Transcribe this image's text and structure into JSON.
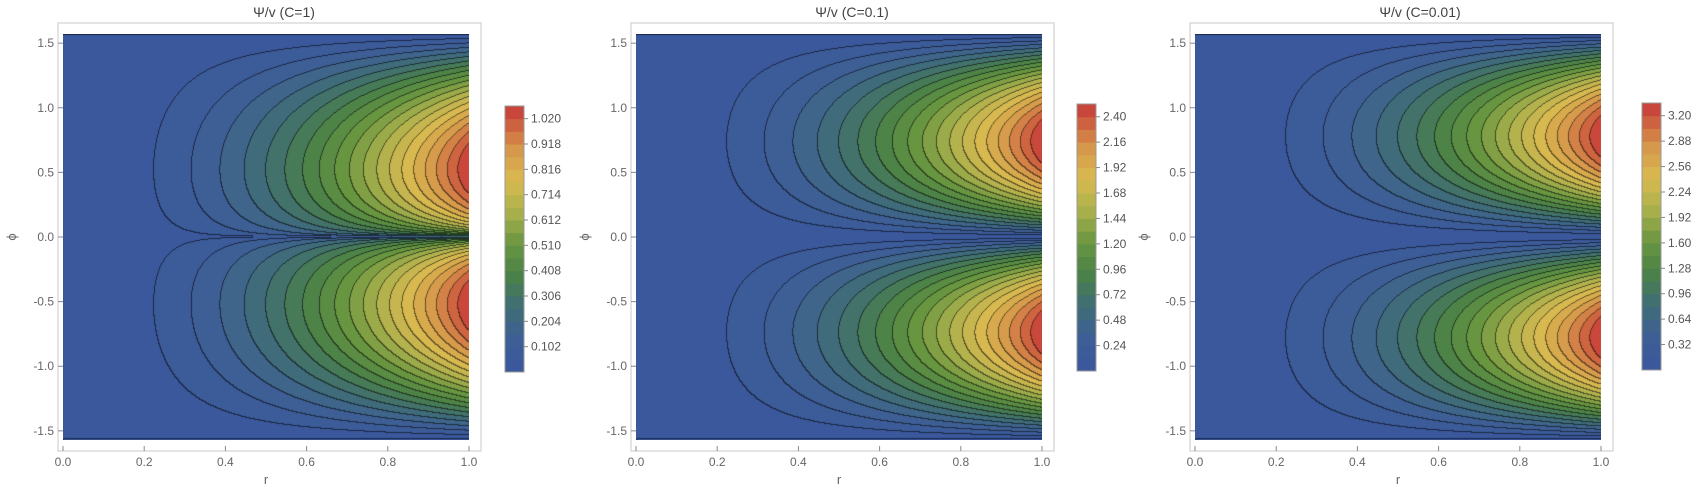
{
  "chart_data": [
    {
      "type": "heatmap",
      "subtype": "contour",
      "title": "Ψ/v (C=1)",
      "xlabel": "r",
      "ylabel": "ϕ",
      "xlim": [
        0.0,
        1.0
      ],
      "ylim": [
        -1.5708,
        1.5708
      ],
      "C": 1,
      "x_ticks": [
        "0.0",
        "0.2",
        "0.4",
        "0.6",
        "0.8",
        "1.0"
      ],
      "y_ticks": [
        "-1.5",
        "-1.0",
        "-0.5",
        "0.0",
        "0.5",
        "1.0",
        "1.5"
      ],
      "colorbar_ticks": [
        "0.102",
        "0.204",
        "0.306",
        "0.408",
        "0.510",
        "0.612",
        "0.714",
        "0.816",
        "0.918",
        "1.020"
      ],
      "colorbar_min": 0.0,
      "colorbar_max": 1.071,
      "color_range": [
        0.0,
        1.02
      ]
    },
    {
      "type": "heatmap",
      "subtype": "contour",
      "title": "Ψ/v (C=0.1)",
      "xlabel": "r",
      "ylabel": "ϕ",
      "xlim": [
        0.0,
        1.0
      ],
      "ylim": [
        -1.5708,
        1.5708
      ],
      "C": 0.1,
      "x_ticks": [
        "0.0",
        "0.2",
        "0.4",
        "0.6",
        "0.8",
        "1.0"
      ],
      "y_ticks": [
        "-1.5",
        "-1.0",
        "-0.5",
        "0.0",
        "0.5",
        "1.0",
        "1.5"
      ],
      "colorbar_ticks": [
        "0.24",
        "0.48",
        "0.72",
        "0.96",
        "1.20",
        "1.44",
        "1.68",
        "1.92",
        "2.16",
        "2.40"
      ],
      "colorbar_min": 0.0,
      "colorbar_max": 2.52,
      "color_range": [
        0.0,
        2.4
      ]
    },
    {
      "type": "heatmap",
      "subtype": "contour",
      "title": "Ψ/v (C=0.01)",
      "xlabel": "r",
      "ylabel": "ϕ",
      "xlim": [
        0.0,
        1.0
      ],
      "ylim": [
        -1.5708,
        1.5708
      ],
      "C": 0.01,
      "x_ticks": [
        "0.0",
        "0.2",
        "0.4",
        "0.6",
        "0.8",
        "1.0"
      ],
      "y_ticks": [
        "-1.5",
        "-1.0",
        "-0.5",
        "0.0",
        "0.5",
        "1.0",
        "1.5"
      ],
      "colorbar_ticks": [
        "0.32",
        "0.64",
        "0.96",
        "1.28",
        "1.60",
        "1.92",
        "2.24",
        "2.56",
        "2.88",
        "3.20"
      ],
      "colorbar_min": 0.0,
      "colorbar_max": 3.36,
      "color_range": [
        0.0,
        3.2
      ]
    }
  ]
}
